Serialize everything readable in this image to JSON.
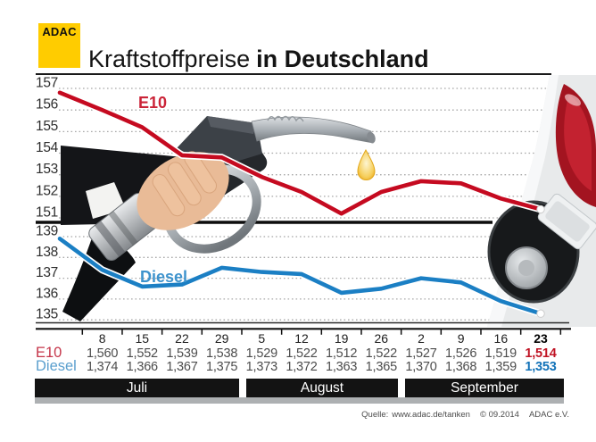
{
  "header": {
    "logo": "ADAC",
    "title": "Kraftstoffpreise",
    "title_bold": "in Deutschland"
  },
  "months": [
    "Juli",
    "August",
    "September"
  ],
  "footer": {
    "source_label": "Quelle:",
    "source_url": "www.adac.de/tanken",
    "copyright": "© 09.2014",
    "org": "ADAC e.V."
  },
  "colors": {
    "adac_yellow": "#FFCC00",
    "e10_red": "#c50a20",
    "diesel_blue": "#1b7fc4",
    "month_bar_black": "#131313",
    "month_bar_gray": "#adb0b2"
  },
  "chart_data": {
    "type": "line",
    "title": "Kraftstoffpreise in Deutschland",
    "x_labels": [
      "",
      "8",
      "15",
      "22",
      "29",
      "5",
      "12",
      "19",
      "26",
      "2",
      "9",
      "16",
      "23"
    ],
    "month_groups": [
      "Juli",
      "August",
      "September"
    ],
    "top_panel": {
      "ylim": [
        151,
        157
      ],
      "yticks": [
        157,
        156,
        155,
        154,
        153,
        152,
        151
      ],
      "grid": "dotted"
    },
    "bottom_panel": {
      "ylim": [
        135,
        139
      ],
      "yticks": [
        139,
        138,
        137,
        136,
        135
      ],
      "grid": "dotted"
    },
    "series": [
      {
        "name": "E10",
        "panel": "top",
        "color": "#c50a20",
        "values": [
          156.8,
          156.0,
          155.2,
          153.9,
          153.8,
          152.9,
          152.2,
          151.2,
          152.2,
          152.7,
          152.6,
          151.9,
          151.4
        ]
      },
      {
        "name": "Diesel",
        "panel": "bottom",
        "color": "#1b7fc4",
        "values": [
          138.9,
          137.4,
          136.6,
          136.7,
          137.5,
          137.3,
          137.2,
          136.3,
          136.5,
          137.0,
          136.8,
          135.9,
          135.3
        ]
      }
    ],
    "table": [
      {
        "label": "E10",
        "values": [
          "1,560",
          "1,552",
          "1,539",
          "1,538",
          "1,529",
          "1,522",
          "1,512",
          "1,522",
          "1,527",
          "1,526",
          "1,519",
          "1,514"
        ]
      },
      {
        "label": "Diesel",
        "values": [
          "1,374",
          "1,366",
          "1,367",
          "1,375",
          "1,373",
          "1,372",
          "1,363",
          "1,365",
          "1,370",
          "1,368",
          "1,359",
          "1,353"
        ]
      }
    ]
  }
}
